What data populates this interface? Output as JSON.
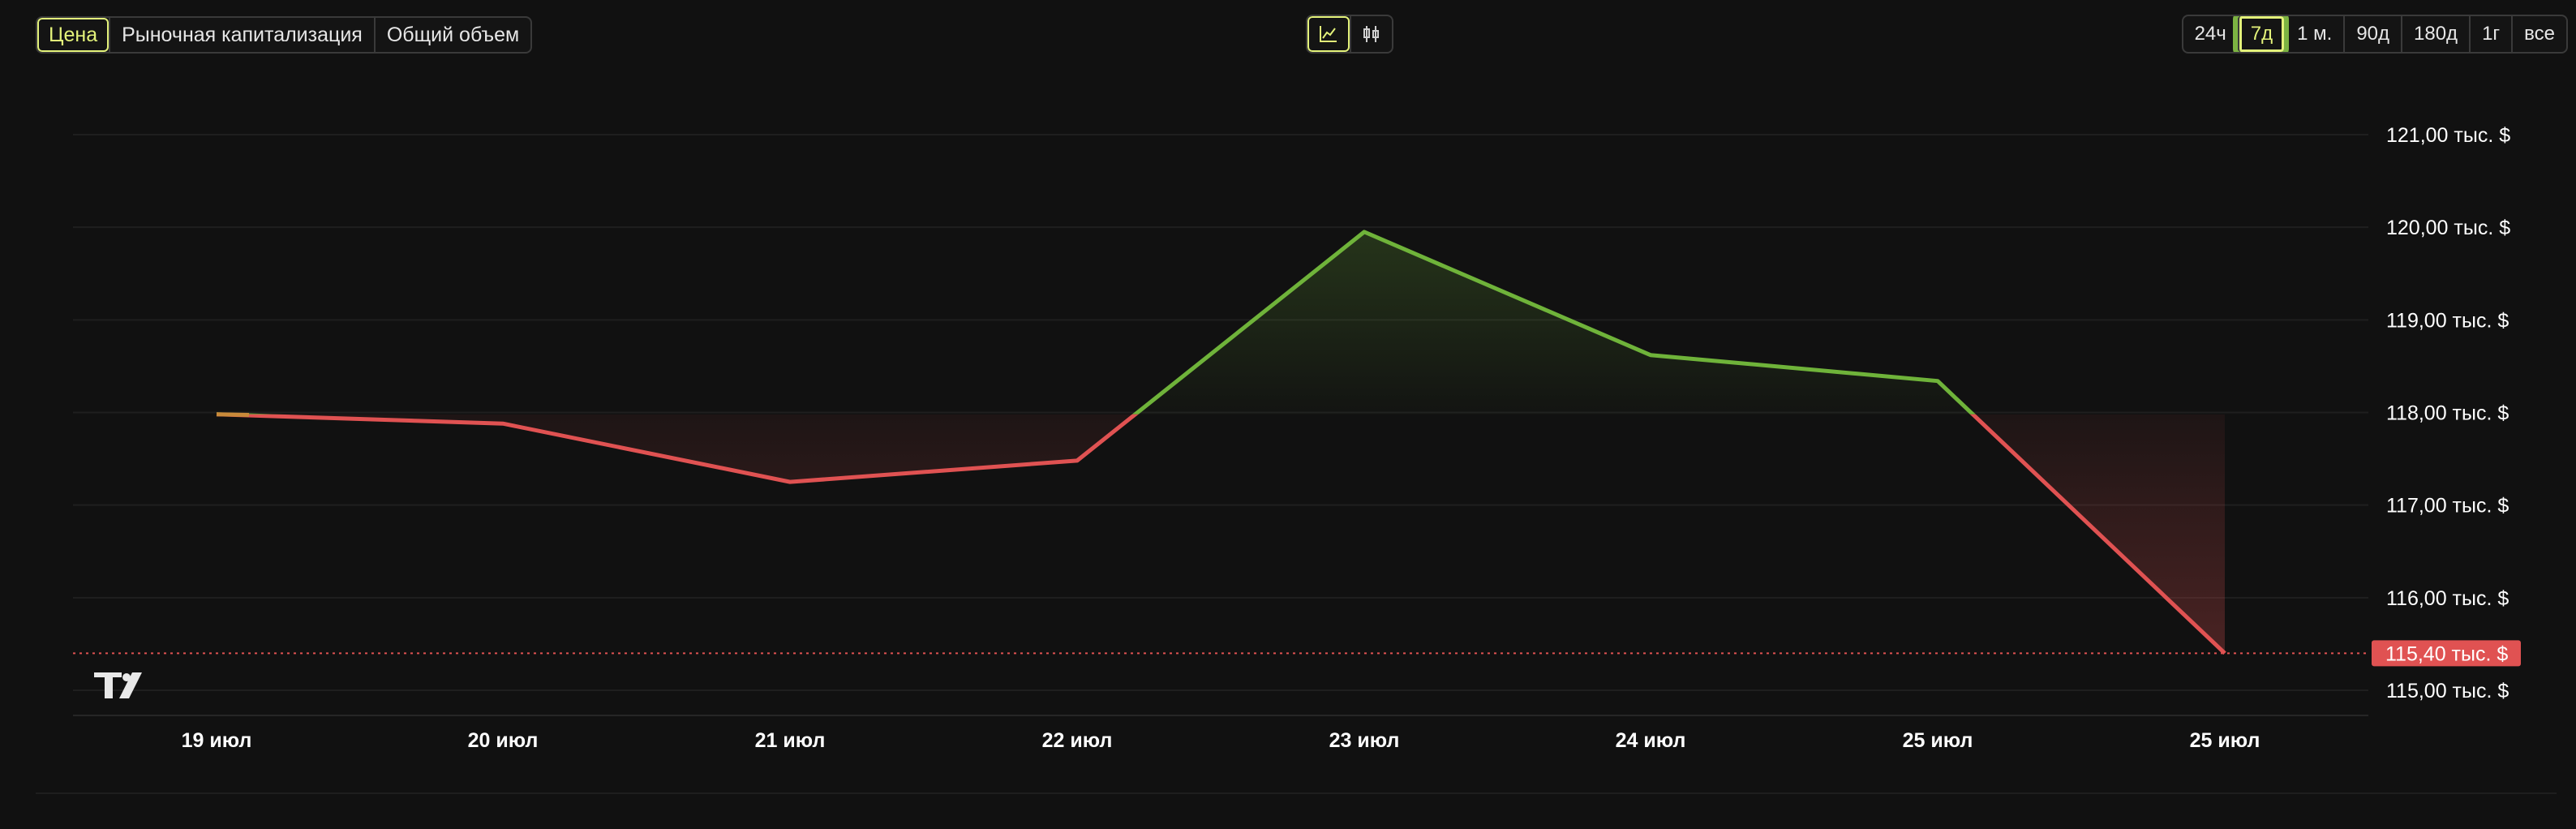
{
  "metric_tabs": [
    {
      "label": "Цена",
      "active": true
    },
    {
      "label": "Рыночная капитализация",
      "active": false
    },
    {
      "label": "Общий объем",
      "active": false
    }
  ],
  "view_toggle": [
    {
      "icon": "line-chart-icon",
      "active": true
    },
    {
      "icon": "candlestick-icon",
      "active": false
    }
  ],
  "range_tabs": [
    {
      "label": "24ч",
      "active": false
    },
    {
      "label": "7д",
      "active": true
    },
    {
      "label": "1 м.",
      "active": false
    },
    {
      "label": "90д",
      "active": false
    },
    {
      "label": "180д",
      "active": false
    },
    {
      "label": "1г",
      "active": false
    },
    {
      "label": "все",
      "active": false
    }
  ],
  "colors": {
    "up": "#6fb33a",
    "down": "#e05252",
    "baseline_marker": "#c98a3a",
    "grid": "#1f1f1f",
    "price_badge": "#e05252"
  },
  "watermark_icon": "tradingview-logo-icon",
  "chart_data": {
    "type": "area",
    "style": "baseline",
    "x": [
      "19 июл",
      "20 июл",
      "21 июл",
      "22 июл",
      "23 июл",
      "24 июл",
      "25 июл",
      "25 июл"
    ],
    "values": [
      117980,
      117880,
      117250,
      117480,
      119950,
      118620,
      118340,
      115400
    ],
    "baseline": 117980,
    "ylim": [
      114750,
      121300
    ],
    "yticks": [
      121000,
      120000,
      119000,
      118000,
      117000,
      116000,
      115000
    ],
    "ytick_labels": [
      "121,00 тыс. $",
      "120,00 тыс. $",
      "119,00 тыс. $",
      "118,00 тыс. $",
      "117,00 тыс. $",
      "116,00 тыс. $",
      "115,00 тыс. $"
    ],
    "last_price": 115400,
    "last_price_label": "115,40 тыс. $",
    "grid": true,
    "title": "",
    "xlabel": "",
    "ylabel": ""
  }
}
